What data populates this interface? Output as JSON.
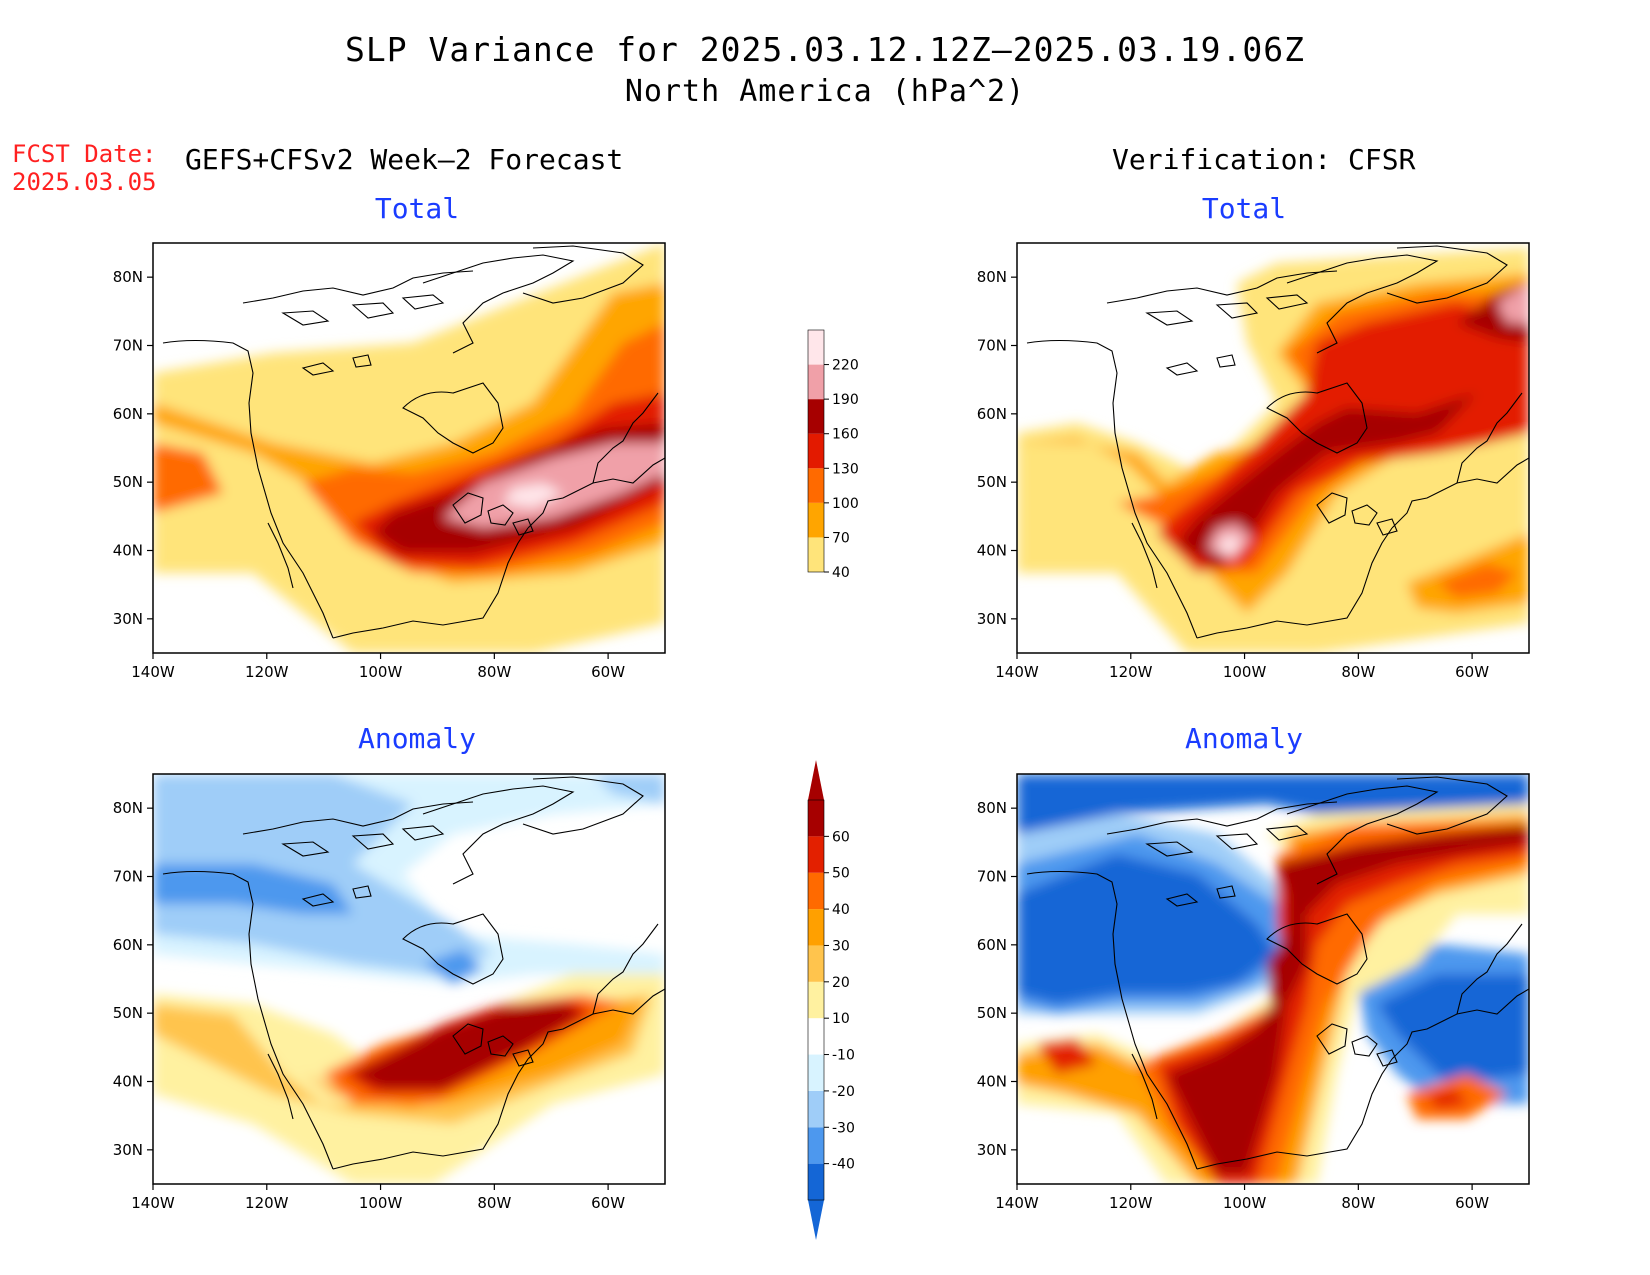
{
  "title": "SLP Variance for 2025.03.12.12Z–2025.03.19.06Z",
  "subtitle": "North America (hPa^2)",
  "fcst_label": "FCST Date:",
  "fcst_date": "2025.03.05",
  "left_header": "GEFS+CFSv2 Week–2 Forecast",
  "right_header": "Verification: CFSR",
  "panels": [
    {
      "title": "Total"
    },
    {
      "title": "Total"
    },
    {
      "title": "Anomaly"
    },
    {
      "title": "Anomaly"
    }
  ],
  "axes": {
    "lon_ticks": [
      "140W",
      "120W",
      "100W",
      "80W",
      "60W"
    ],
    "lat_ticks": [
      "80N",
      "70N",
      "60N",
      "50N",
      "40N",
      "30N"
    ],
    "lon_range": [
      -140,
      -50
    ],
    "lat_range": [
      25,
      85
    ]
  },
  "colorbars": {
    "total": {
      "levels": [
        "40",
        "70",
        "100",
        "130",
        "160",
        "190",
        "220"
      ],
      "colors": [
        "#ffe47a",
        "#ffa500",
        "#ff6a00",
        "#e31a00",
        "#a60000",
        "#f0a0a8",
        "#ffe6ea"
      ]
    },
    "anomaly": {
      "levels": [
        "-40",
        "-30",
        "-20",
        "-10",
        "10",
        "20",
        "30",
        "40",
        "50",
        "60"
      ],
      "colors": [
        "#1466d6",
        "#4d98ee",
        "#9fcdf8",
        "#d8f3ff",
        "#ffffff",
        "#fff1a0",
        "#ffc44d",
        "#ffa000",
        "#ff6a00",
        "#e32000",
        "#a60000"
      ]
    }
  },
  "colors": {
    "title_blue": "#1a3cff",
    "fcst_red": "#ff2020"
  }
}
